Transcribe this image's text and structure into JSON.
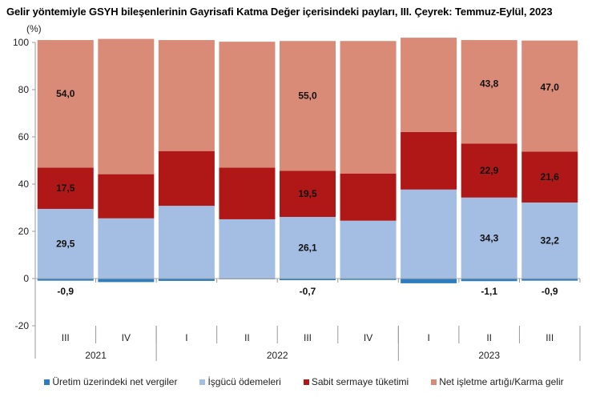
{
  "chart_data": {
    "type": "bar",
    "stacked": true,
    "title": "Gelir yöntemiyle GSYH bileşenlerinin Gayrisafi Katma Değer içerisindeki payları, III. Çeyrek: Temmuz-Eylül, 2023",
    "ylabel": "(%)",
    "xlabel": "",
    "ylim": [
      -20,
      100
    ],
    "yticks": [
      -20,
      0,
      20,
      40,
      60,
      80,
      100
    ],
    "grid": false,
    "legend_position": "bottom",
    "categories": [
      "III",
      "IV",
      "I",
      "II",
      "III",
      "IV",
      "I",
      "II",
      "III"
    ],
    "year_groups": [
      {
        "label": "2021",
        "span": 2
      },
      {
        "label": "2022",
        "span": 4
      },
      {
        "label": "2023",
        "span": 3
      }
    ],
    "series": [
      {
        "name": "Üretim üzerindeki net vergiler",
        "color": "#2e7ebf",
        "values": [
          -0.9,
          -1.5,
          -1.0,
          -0.3,
          -0.7,
          -0.6,
          -2.0,
          -1.1,
          -0.9
        ],
        "labels": [
          "-0,9",
          "",
          "",
          "",
          "-0,7",
          "",
          "",
          "-1,1",
          "-0,9"
        ]
      },
      {
        "name": "İşgücü ödemeleri",
        "color": "#a4bde2",
        "values": [
          29.5,
          25.5,
          30.8,
          25.1,
          26.1,
          24.5,
          37.7,
          34.3,
          32.2
        ],
        "labels": [
          "29,5",
          "",
          "",
          "",
          "26,1",
          "",
          "",
          "34,3",
          "32,2"
        ]
      },
      {
        "name": "Sabit sermaye tüketimi",
        "color": "#b01818",
        "values": [
          17.5,
          18.7,
          23.2,
          21.9,
          19.5,
          20.0,
          24.4,
          22.9,
          21.6
        ],
        "labels": [
          "17,5",
          "",
          "",
          "",
          "19,5",
          "",
          "",
          "22,9",
          "21,6"
        ]
      },
      {
        "name": "Net işletme artığı/Karma gelir",
        "color": "#d98b78",
        "values": [
          54.0,
          57.3,
          47.0,
          53.3,
          55.0,
          56.1,
          39.9,
          43.8,
          47.0
        ],
        "labels": [
          "54,0",
          "",
          "",
          "",
          "55,0",
          "",
          "",
          "43,8",
          "47,0"
        ]
      }
    ]
  }
}
